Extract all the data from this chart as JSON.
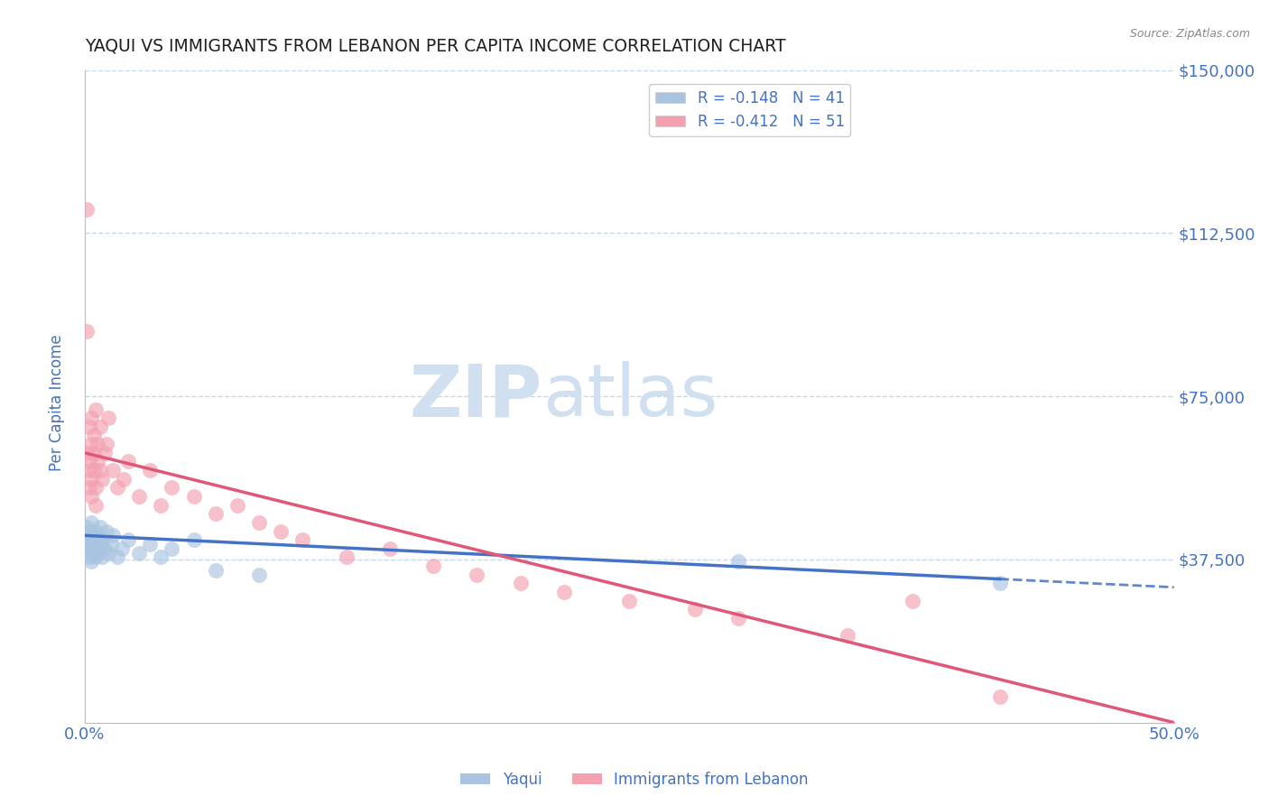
{
  "title": "YAQUI VS IMMIGRANTS FROM LEBANON PER CAPITA INCOME CORRELATION CHART",
  "source_text": "Source: ZipAtlas.com",
  "ylabel": "Per Capita Income",
  "xlim": [
    0.0,
    0.5
  ],
  "ylim": [
    0,
    150000
  ],
  "yticks": [
    37500,
    75000,
    112500,
    150000
  ],
  "ytick_labels": [
    "$37,500",
    "$75,000",
    "$112,500",
    "$150,000"
  ],
  "xticks": [
    0.0,
    0.125,
    0.25,
    0.375,
    0.5
  ],
  "xtick_labels": [
    "0.0%",
    "",
    "",
    "",
    "50.0%"
  ],
  "legend_entries": [
    {
      "label": "R = -0.148   N = 41",
      "color": "#a8c4e0"
    },
    {
      "label": "R = -0.412   N = 51",
      "color": "#f4a0b0"
    }
  ],
  "yaqui_scatter_x": [
    0.001,
    0.001,
    0.001,
    0.002,
    0.002,
    0.002,
    0.002,
    0.003,
    0.003,
    0.003,
    0.003,
    0.004,
    0.004,
    0.004,
    0.005,
    0.005,
    0.005,
    0.006,
    0.006,
    0.006,
    0.007,
    0.007,
    0.008,
    0.008,
    0.009,
    0.01,
    0.011,
    0.012,
    0.013,
    0.015,
    0.017,
    0.02,
    0.025,
    0.03,
    0.035,
    0.04,
    0.05,
    0.06,
    0.08,
    0.3,
    0.42
  ],
  "yaqui_scatter_y": [
    42000,
    39000,
    45000,
    41000,
    43000,
    38000,
    44000,
    40000,
    42000,
    37000,
    46000,
    39000,
    43000,
    41000,
    38000,
    44000,
    40000,
    42000,
    39000,
    43000,
    41000,
    45000,
    38000,
    42000,
    40000,
    44000,
    39000,
    41000,
    43000,
    38000,
    40000,
    42000,
    39000,
    41000,
    38000,
    40000,
    42000,
    35000,
    34000,
    37000,
    32000
  ],
  "lebanon_scatter_x": [
    0.001,
    0.001,
    0.001,
    0.002,
    0.002,
    0.002,
    0.002,
    0.003,
    0.003,
    0.003,
    0.003,
    0.004,
    0.004,
    0.004,
    0.005,
    0.005,
    0.005,
    0.006,
    0.006,
    0.007,
    0.007,
    0.008,
    0.009,
    0.01,
    0.011,
    0.013,
    0.015,
    0.018,
    0.02,
    0.025,
    0.03,
    0.035,
    0.04,
    0.05,
    0.06,
    0.07,
    0.08,
    0.09,
    0.1,
    0.12,
    0.14,
    0.16,
    0.18,
    0.2,
    0.22,
    0.25,
    0.28,
    0.3,
    0.35,
    0.38,
    0.42
  ],
  "lebanon_scatter_y": [
    118000,
    90000,
    62000,
    68000,
    58000,
    54000,
    60000,
    56000,
    64000,
    70000,
    52000,
    58000,
    66000,
    62000,
    54000,
    72000,
    50000,
    64000,
    60000,
    68000,
    58000,
    56000,
    62000,
    64000,
    70000,
    58000,
    54000,
    56000,
    60000,
    52000,
    58000,
    50000,
    54000,
    52000,
    48000,
    50000,
    46000,
    44000,
    42000,
    38000,
    40000,
    36000,
    34000,
    32000,
    30000,
    28000,
    26000,
    24000,
    20000,
    28000,
    6000
  ],
  "blue_line_color": "#4472c4",
  "pink_line_color": "#e05878",
  "blue_dot_color": "#a8c4e0",
  "pink_dot_color": "#f4a0b0",
  "dot_size": 150,
  "dot_alpha": 0.65,
  "background_color": "#ffffff",
  "grid_color": "#c8d8e8",
  "title_color": "#202020",
  "axis_label_color": "#4472c4",
  "tick_color": "#4472c4",
  "watermark_zip": "ZIP",
  "watermark_atlas": "atlas",
  "watermark_color": "#d0e0f0"
}
